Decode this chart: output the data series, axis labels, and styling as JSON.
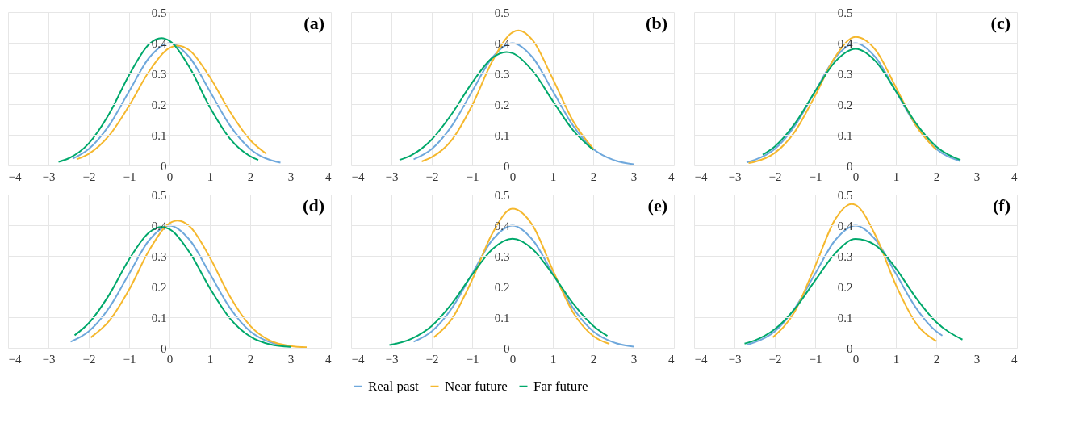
{
  "chart_data": [
    {
      "type": "line",
      "annotations": [
        "(a)"
      ],
      "xlim": [
        -4,
        4
      ],
      "xticks": [
        -4,
        -3,
        -2,
        -1,
        0,
        1,
        2,
        3,
        4
      ],
      "ylim": [
        0,
        0.5
      ],
      "yticks": [
        0,
        0.1,
        0.2,
        0.3,
        0.4,
        0.5
      ],
      "grid": true,
      "line_style": "solid",
      "marker": "none",
      "series": [
        {
          "color": "#6fa8dc",
          "x": [
            -2.4,
            -2,
            -1.5,
            -1,
            -0.5,
            0,
            0.5,
            1,
            1.5,
            2,
            2.75
          ],
          "values": [
            0.022,
            0.054,
            0.13,
            0.242,
            0.352,
            0.399,
            0.352,
            0.242,
            0.13,
            0.054,
            0.009
          ]
        },
        {
          "color": "#f5b82e",
          "x": [
            -2.3,
            -2,
            -1.5,
            -1,
            -0.5,
            0,
            0.2,
            0.5,
            1,
            1.5,
            2,
            2.4
          ],
          "values": [
            0.02,
            0.038,
            0.097,
            0.195,
            0.308,
            0.383,
            0.391,
            0.375,
            0.288,
            0.175,
            0.083,
            0.038
          ]
        },
        {
          "color": "#00a86b",
          "x": [
            -2.75,
            -2.5,
            -2,
            -1.5,
            -1,
            -0.5,
            -0.2,
            0,
            0.5,
            1,
            1.5,
            2,
            2.2
          ],
          "values": [
            0.012,
            0.023,
            0.072,
            0.167,
            0.295,
            0.396,
            0.415,
            0.406,
            0.319,
            0.19,
            0.087,
            0.03,
            0.018
          ]
        }
      ]
    },
    {
      "type": "line",
      "annotations": [
        "(b)"
      ],
      "xlim": [
        -4,
        4
      ],
      "xticks": [
        -4,
        -3,
        -2,
        -1,
        0,
        1,
        2,
        3,
        4
      ],
      "ylim": [
        0,
        0.5
      ],
      "yticks": [
        0,
        0.1,
        0.2,
        0.3,
        0.4,
        0.5
      ],
      "grid": true,
      "line_style": "solid",
      "marker": "none",
      "series": [
        {
          "color": "#6fa8dc",
          "x": [
            -2.45,
            -2,
            -1.5,
            -1,
            -0.5,
            0,
            0.5,
            1,
            1.5,
            2,
            2.5,
            3
          ],
          "values": [
            0.02,
            0.054,
            0.13,
            0.242,
            0.352,
            0.399,
            0.352,
            0.242,
            0.13,
            0.054,
            0.018,
            0.004
          ]
        },
        {
          "color": "#f5b82e",
          "x": [
            -2.25,
            -2,
            -1.5,
            -1,
            -0.5,
            0,
            0.15,
            0.5,
            1,
            1.5,
            2
          ],
          "values": [
            0.013,
            0.027,
            0.084,
            0.196,
            0.34,
            0.434,
            0.44,
            0.408,
            0.282,
            0.145,
            0.055
          ]
        },
        {
          "color": "#00a86b",
          "x": [
            -2.8,
            -2.5,
            -2,
            -1.5,
            -1,
            -0.5,
            -0.15,
            0,
            0.5,
            1,
            1.5,
            2
          ],
          "values": [
            0.018,
            0.034,
            0.085,
            0.169,
            0.27,
            0.351,
            0.37,
            0.366,
            0.308,
            0.21,
            0.115,
            0.051
          ]
        }
      ]
    },
    {
      "type": "line",
      "annotations": [
        "(c)"
      ],
      "xlim": [
        -4,
        4
      ],
      "xticks": [
        -4,
        -3,
        -2,
        -1,
        0,
        1,
        2,
        3,
        4
      ],
      "ylim": [
        0,
        0.5
      ],
      "yticks": [
        0,
        0.1,
        0.2,
        0.3,
        0.4,
        0.5
      ],
      "grid": true,
      "line_style": "solid",
      "marker": "none",
      "series": [
        {
          "color": "#6fa8dc",
          "x": [
            -2.7,
            -2.5,
            -2,
            -1.5,
            -1,
            -0.5,
            0,
            0.5,
            1,
            1.5,
            2,
            2.6
          ],
          "values": [
            0.01,
            0.018,
            0.054,
            0.13,
            0.242,
            0.352,
            0.399,
            0.352,
            0.242,
            0.13,
            0.054,
            0.014
          ]
        },
        {
          "color": "#f5b82e",
          "x": [
            -2.65,
            -2.5,
            -2,
            -1.5,
            -1,
            -0.5,
            0,
            0.5,
            1,
            1.5,
            2
          ],
          "values": [
            0.008,
            0.012,
            0.041,
            0.111,
            0.228,
            0.355,
            0.419,
            0.376,
            0.255,
            0.13,
            0.051
          ]
        },
        {
          "color": "#00a86b",
          "x": [
            -2.3,
            -2,
            -1.5,
            -1,
            -0.5,
            0,
            0.5,
            1,
            1.5,
            2,
            2.6
          ],
          "values": [
            0.035,
            0.062,
            0.137,
            0.242,
            0.339,
            0.38,
            0.339,
            0.242,
            0.137,
            0.062,
            0.018
          ]
        }
      ]
    },
    {
      "type": "line",
      "annotations": [
        "(d)"
      ],
      "xlim": [
        -4,
        4
      ],
      "xticks": [
        -4,
        -3,
        -2,
        -1,
        0,
        1,
        2,
        3,
        4
      ],
      "ylim": [
        0,
        0.5
      ],
      "yticks": [
        0,
        0.1,
        0.2,
        0.3,
        0.4,
        0.5
      ],
      "grid": true,
      "line_style": "solid",
      "marker": "none",
      "series": [
        {
          "color": "#6fa8dc",
          "x": [
            -2.45,
            -2,
            -1.5,
            -1,
            -0.5,
            0,
            0.5,
            1,
            1.5,
            2,
            2.5,
            3
          ],
          "values": [
            0.02,
            0.054,
            0.13,
            0.242,
            0.352,
            0.399,
            0.352,
            0.242,
            0.13,
            0.054,
            0.018,
            0.004
          ]
        },
        {
          "color": "#f5b82e",
          "x": [
            -1.95,
            -1.5,
            -1,
            -0.5,
            0,
            0.2,
            0.5,
            1,
            1.5,
            2,
            2.5,
            3,
            3.4
          ],
          "values": [
            0.034,
            0.087,
            0.19,
            0.319,
            0.406,
            0.415,
            0.396,
            0.295,
            0.167,
            0.072,
            0.023,
            0.006,
            0.002
          ]
        },
        {
          "color": "#00a86b",
          "x": [
            -2.35,
            -2,
            -1.5,
            -1,
            -0.5,
            -0.2,
            0,
            0.5,
            1,
            1.5,
            2,
            2.5,
            3
          ],
          "values": [
            0.041,
            0.081,
            0.172,
            0.289,
            0.377,
            0.395,
            0.387,
            0.311,
            0.195,
            0.096,
            0.037,
            0.011,
            0.003
          ]
        }
      ]
    },
    {
      "type": "line",
      "annotations": [
        "(e)"
      ],
      "xlim": [
        -4,
        4
      ],
      "xticks": [
        -4,
        -3,
        -2,
        -1,
        0,
        1,
        2,
        3,
        4
      ],
      "ylim": [
        0,
        0.5
      ],
      "yticks": [
        0,
        0.1,
        0.2,
        0.3,
        0.4,
        0.5
      ],
      "grid": true,
      "line_style": "solid",
      "marker": "none",
      "legend": "bottom",
      "series": [
        {
          "name": "Real past",
          "color": "#6fa8dc",
          "x": [
            -2.45,
            -2,
            -1.5,
            -1,
            -0.5,
            0,
            0.5,
            1,
            1.5,
            2,
            2.5,
            3
          ],
          "values": [
            0.02,
            0.054,
            0.13,
            0.242,
            0.352,
            0.399,
            0.352,
            0.242,
            0.13,
            0.054,
            0.018,
            0.004
          ]
        },
        {
          "name": "Near future",
          "color": "#f5b82e",
          "x": [
            -1.95,
            -1.5,
            -1,
            -0.5,
            0,
            0.5,
            1,
            1.5,
            2,
            2.4
          ],
          "values": [
            0.034,
            0.095,
            0.222,
            0.373,
            0.454,
            0.399,
            0.253,
            0.116,
            0.039,
            0.013
          ]
        },
        {
          "name": "Far future",
          "color": "#00a86b",
          "x": [
            -3.05,
            -2.5,
            -2,
            -1.5,
            -1,
            -0.5,
            0,
            0.5,
            1,
            1.5,
            2,
            2.35
          ],
          "values": [
            0.009,
            0.03,
            0.072,
            0.145,
            0.239,
            0.322,
            0.356,
            0.322,
            0.239,
            0.145,
            0.072,
            0.039
          ]
        }
      ]
    },
    {
      "type": "line",
      "annotations": [
        "(f)"
      ],
      "xlim": [
        -4,
        4
      ],
      "xticks": [
        -4,
        -3,
        -2,
        -1,
        0,
        1,
        2,
        3,
        4
      ],
      "ylim": [
        0,
        0.5
      ],
      "yticks": [
        0,
        0.1,
        0.2,
        0.3,
        0.4,
        0.5
      ],
      "grid": true,
      "line_style": "solid",
      "marker": "none",
      "series": [
        {
          "color": "#6fa8dc",
          "x": [
            -2.7,
            -2.5,
            -2,
            -1.5,
            -1,
            -0.5,
            0,
            0.5,
            1,
            1.5,
            2,
            2.15
          ],
          "values": [
            0.01,
            0.018,
            0.054,
            0.13,
            0.242,
            0.352,
            0.399,
            0.352,
            0.242,
            0.13,
            0.054,
            0.04
          ]
        },
        {
          "color": "#f5b82e",
          "x": [
            -2.05,
            -1.5,
            -1,
            -0.5,
            -0.1,
            0,
            0.5,
            1,
            1.5,
            2
          ],
          "values": [
            0.034,
            0.12,
            0.267,
            0.42,
            0.469,
            0.466,
            0.365,
            0.205,
            0.08,
            0.022
          ]
        },
        {
          "color": "#00a86b",
          "x": [
            -2.75,
            -2.5,
            -2,
            -1.5,
            -1,
            -0.5,
            0,
            0.5,
            1,
            1.5,
            2,
            2.65
          ],
          "values": [
            0.014,
            0.024,
            0.061,
            0.128,
            0.22,
            0.309,
            0.355,
            0.334,
            0.259,
            0.163,
            0.084,
            0.027
          ]
        }
      ]
    }
  ]
}
